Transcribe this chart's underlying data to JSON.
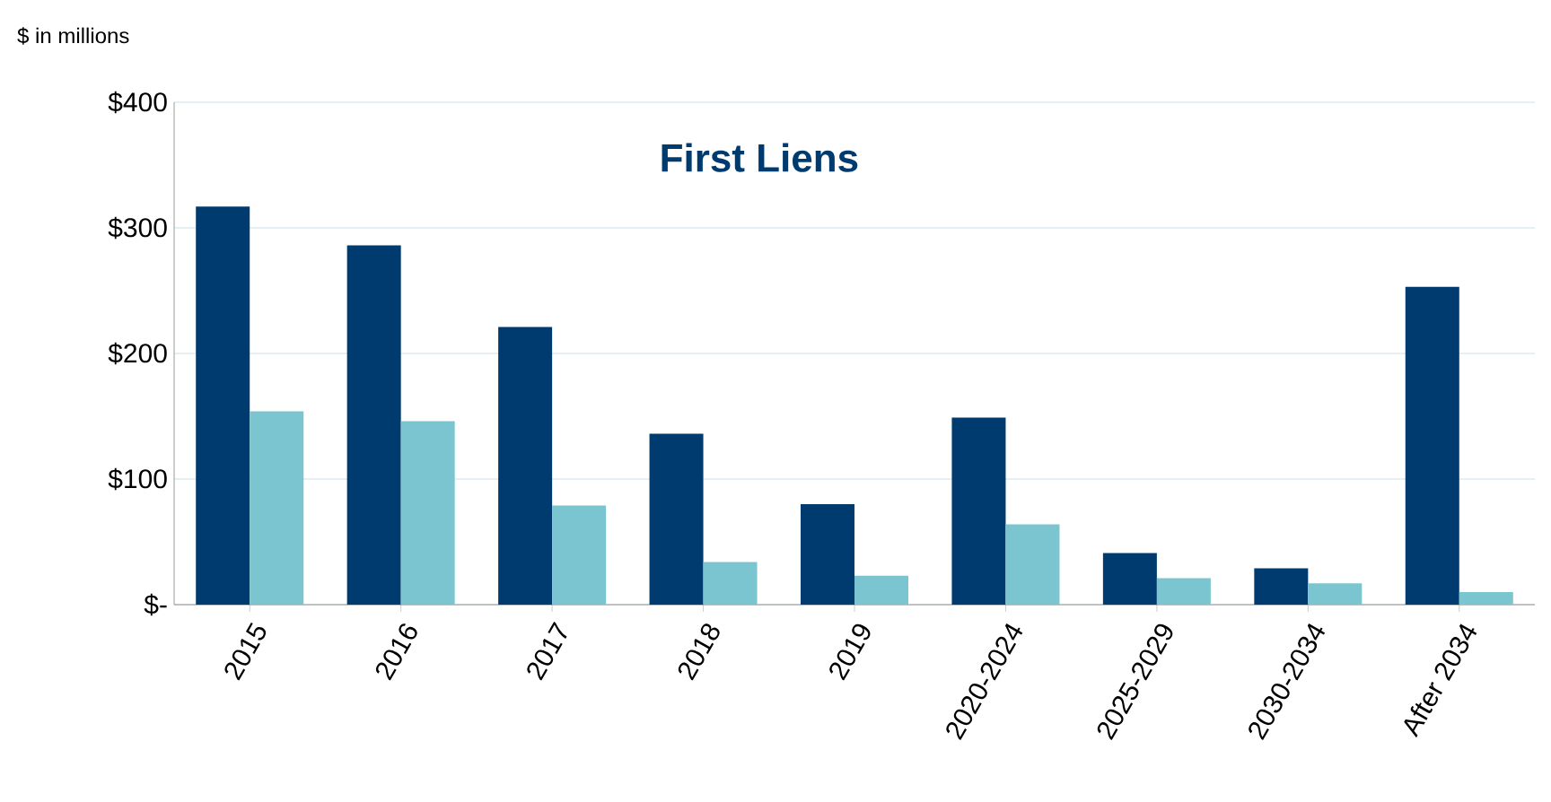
{
  "chart_data": {
    "type": "bar",
    "title": "First Liens",
    "ylabel": "$ in millions",
    "categories": [
      "2015",
      "2016",
      "2017",
      "2018",
      "2019",
      "2020-2024",
      "2025-2029",
      "2030-2034",
      "After 2034"
    ],
    "series": [
      {
        "color": "#003b6f",
        "values": [
          317,
          286,
          221,
          136,
          80,
          149,
          41,
          29,
          253
        ]
      },
      {
        "color": "#7ac5cf",
        "values": [
          154,
          146,
          79,
          34,
          23,
          64,
          21,
          17,
          10
        ]
      }
    ],
    "ylim": [
      0,
      400
    ],
    "yticks": [
      {
        "value": 0,
        "label": "$-"
      },
      {
        "value": 100,
        "label": "$100"
      },
      {
        "value": 200,
        "label": "$200"
      },
      {
        "value": 300,
        "label": "$300"
      },
      {
        "value": 400,
        "label": "$400"
      }
    ],
    "grid": "y"
  }
}
